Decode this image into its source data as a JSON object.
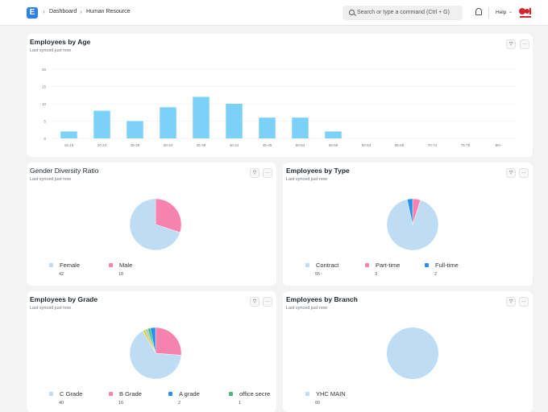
{
  "navbar": {
    "logo_letter": "E",
    "breadcrumbs": [
      "Dashboard",
      "Human Resource"
    ],
    "search_placeholder": "Search or type a command (Ctrl + G)",
    "help_label": "Help"
  },
  "colors": {
    "blue_bar": "#7cd1f8",
    "light_blue": "#bfdcf5",
    "pink": "#f683ae",
    "dark_blue": "#2490ef",
    "green": "#48bb74",
    "yellow": "#e8c93a"
  },
  "age_card": {
    "title": "Employees by Age",
    "subtitle": "Last synced just now",
    "chart_data": {
      "type": "bar",
      "categories": [
        "15-19",
        "20-24",
        "25-29",
        "30-34",
        "35-39",
        "40-44",
        "45-49",
        "50-54",
        "55-59",
        "60-64",
        "65-69",
        "70-74",
        "75-79",
        "80+"
      ],
      "values": [
        2,
        8,
        5,
        9,
        12,
        10,
        6,
        6,
        2,
        0,
        0,
        0,
        0,
        0
      ],
      "yticks": [
        0,
        5,
        10,
        15,
        20
      ],
      "ylim": [
        0,
        20
      ],
      "grid": true,
      "color": "#7cd1f8"
    }
  },
  "gender_card": {
    "title": "Gender Diversity Ratio",
    "subtitle": "Last synced just now",
    "chart_data": {
      "type": "pie",
      "labels": [
        "Female",
        "Male"
      ],
      "values": [
        42,
        18
      ],
      "colors": [
        "#bfdcf5",
        "#f683ae"
      ]
    }
  },
  "type_card": {
    "title": "Employees by Type",
    "subtitle": "Last synced just now",
    "chart_data": {
      "type": "pie",
      "labels": [
        "Contract",
        "Part-time",
        "Full-time"
      ],
      "values": [
        55,
        3,
        2
      ],
      "colors": [
        "#bfdcf5",
        "#f683ae",
        "#2490ef"
      ]
    }
  },
  "grade_card": {
    "title": "Employees by Grade",
    "subtitle": "Last synced just now",
    "chart_data": {
      "type": "pie",
      "labels": [
        "C Grade",
        "B Grade",
        "A grade",
        "office secre"
      ],
      "values": [
        40,
        16,
        2,
        1
      ],
      "slice_values": [
        40,
        16,
        2,
        1,
        1,
        1
      ],
      "colors": [
        "#bfdcf5",
        "#f683ae",
        "#2490ef",
        "#48bb74",
        "#e8c93a",
        "#9bd1c5"
      ]
    }
  },
  "branch_card": {
    "title": "Employees by Branch",
    "subtitle": "Last synced just now",
    "chart_data": {
      "type": "pie",
      "labels": [
        "YHC MAIN"
      ],
      "values": [
        60
      ],
      "colors": [
        "#bfdcf5"
      ]
    }
  }
}
